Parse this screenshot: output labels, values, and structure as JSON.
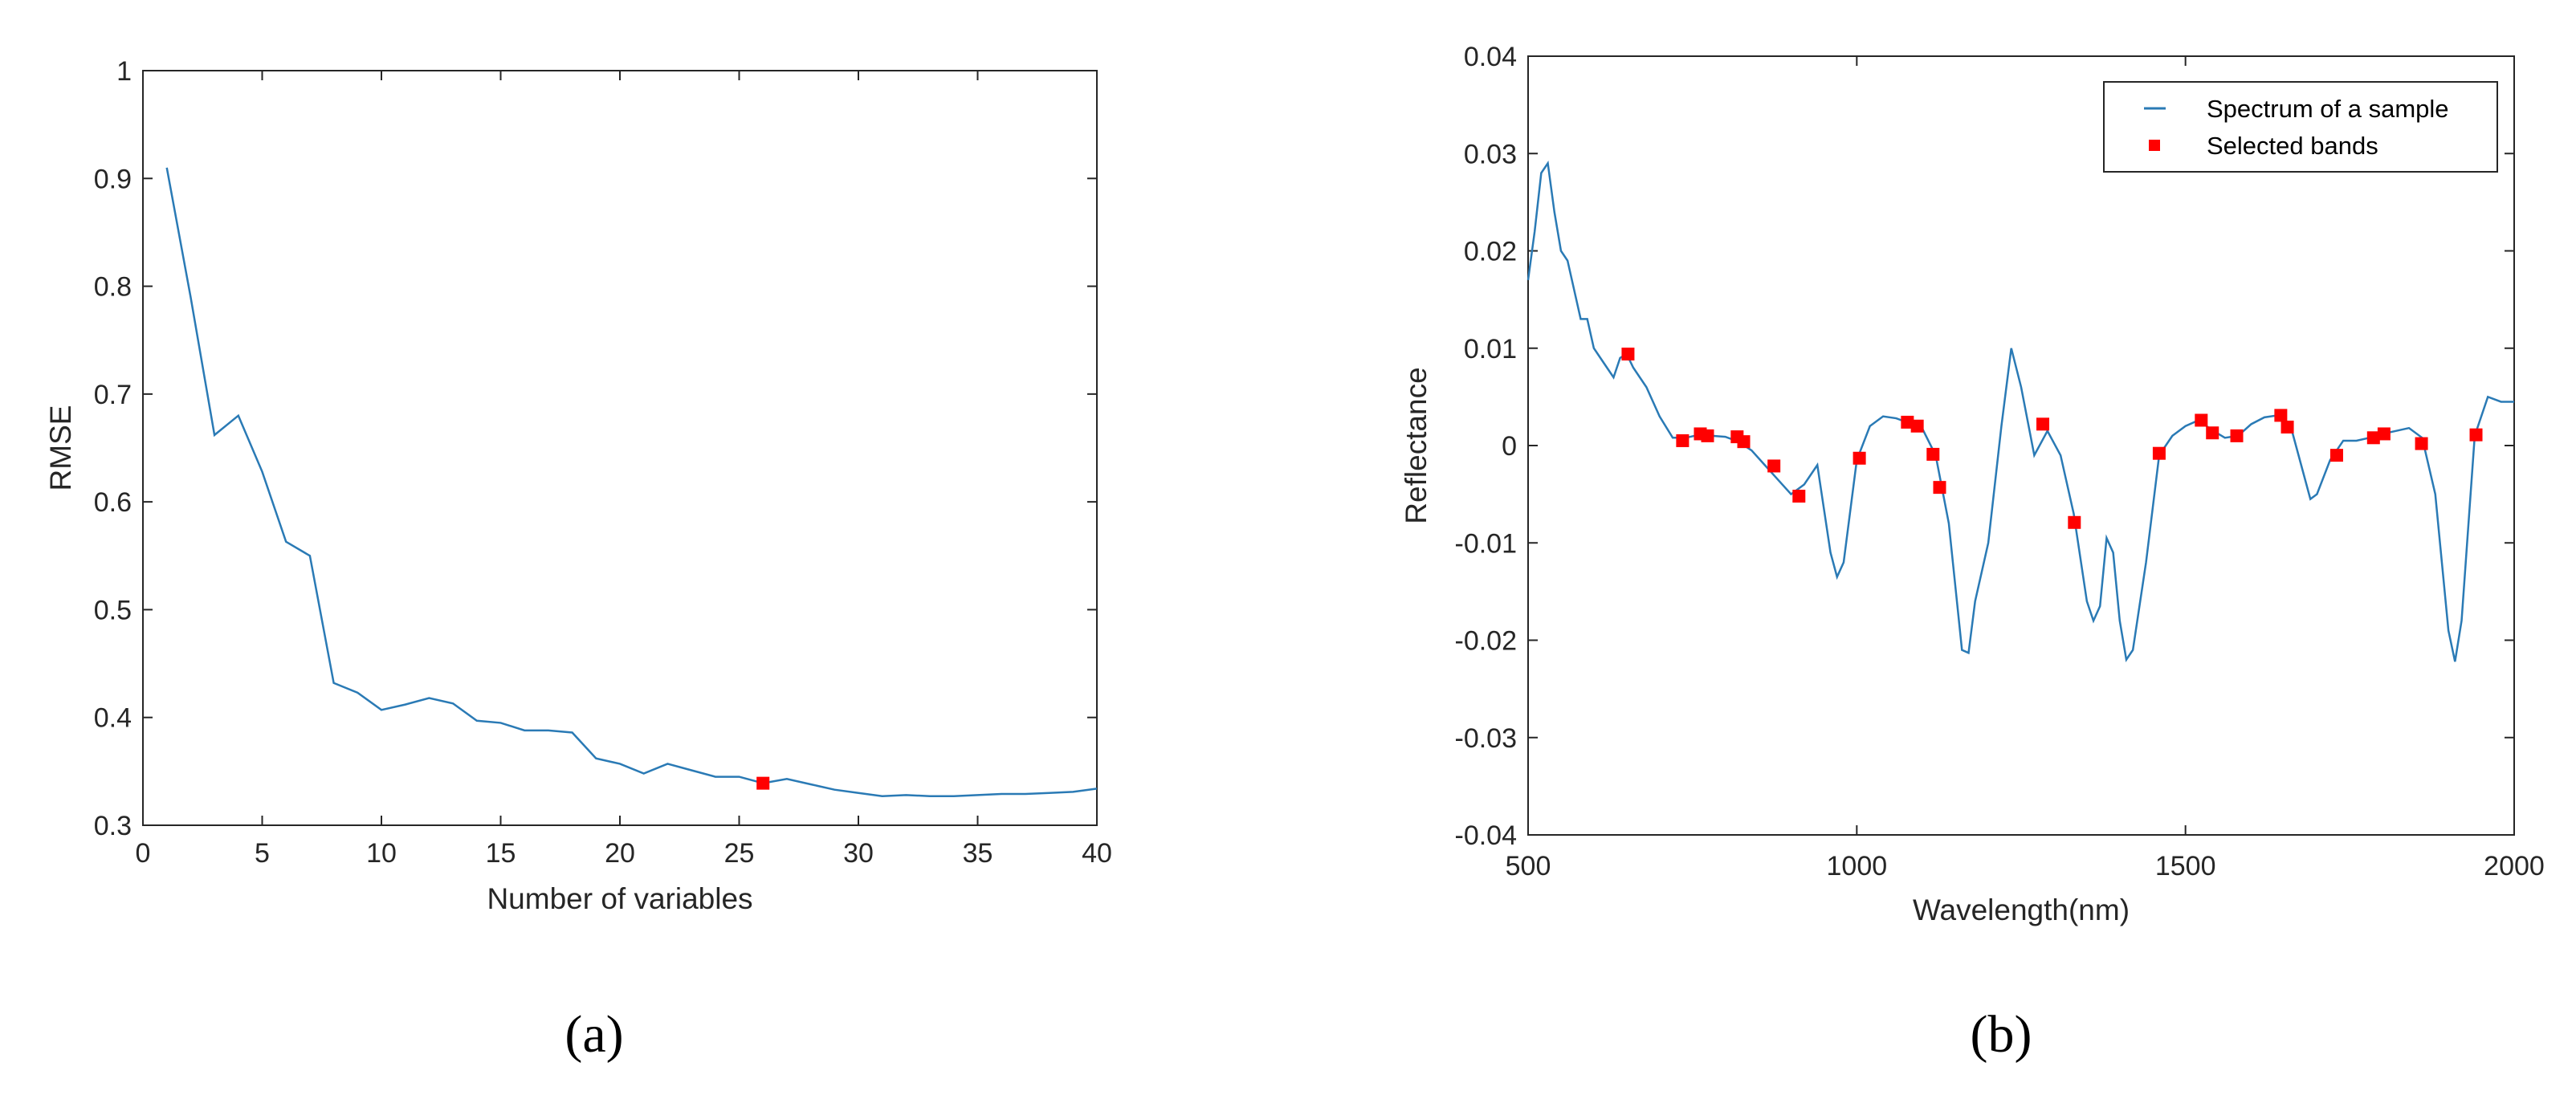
{
  "chart_data": [
    {
      "type": "line",
      "xlabel": "Number of variables",
      "ylabel": "RMSE",
      "xlim": [
        0,
        40
      ],
      "ylim": [
        0.3,
        1
      ],
      "xticks": [
        "0",
        "5",
        "10",
        "15",
        "20",
        "25",
        "30",
        "35",
        "40"
      ],
      "yticks": [
        "0.3",
        "0.4",
        "0.5",
        "0.6",
        "0.7",
        "0.8",
        "0.9",
        "1"
      ],
      "grid": false,
      "line_color": "#2a7ab5",
      "marker_color": "#ff0000",
      "series": [
        {
          "x": [
            1,
            2,
            3,
            4,
            5,
            6,
            7,
            8,
            9,
            10,
            11,
            12,
            13,
            14,
            15,
            16,
            17,
            18,
            19,
            20,
            21,
            22,
            23,
            24,
            25,
            26,
            27,
            28,
            29,
            30,
            31,
            32,
            33,
            34,
            35,
            36,
            37,
            38,
            39,
            40
          ],
          "values": [
            0.91,
            0.79,
            0.662,
            0.68,
            0.628,
            0.563,
            0.55,
            0.432,
            0.423,
            0.407,
            0.412,
            0.418,
            0.413,
            0.397,
            0.395,
            0.388,
            0.388,
            0.386,
            0.362,
            0.357,
            0.348,
            0.357,
            0.351,
            0.345,
            0.345,
            0.339,
            0.343,
            0.338,
            0.333,
            0.33,
            0.327,
            0.328,
            0.327,
            0.327,
            0.328,
            0.329,
            0.329,
            0.33,
            0.331,
            0.334
          ]
        }
      ],
      "highlight_point": {
        "x": 26,
        "y": 0.339
      },
      "caption": "(a)"
    },
    {
      "type": "line",
      "xlabel": "Wavelength(nm)",
      "ylabel": "Reflectance",
      "xlim": [
        500,
        2000
      ],
      "ylim": [
        -0.04,
        0.04
      ],
      "xticks": [
        "500",
        "1000",
        "1500",
        "2000"
      ],
      "yticks": [
        "-0.04",
        "-0.03",
        "-0.02",
        "-0.01",
        "0",
        "0.01",
        "0.02",
        "0.03",
        "0.04"
      ],
      "grid": false,
      "legend_position": "top-right",
      "legend": [
        "Spectrum of a sample",
        "Selected bands"
      ],
      "line_color": "#2a7ab5",
      "marker_color": "#ff0000",
      "series": [
        {
          "name": "Spectrum of a sample",
          "x": [
            500,
            510,
            520,
            530,
            540,
            550,
            560,
            570,
            580,
            590,
            600,
            610,
            620,
            630,
            640,
            650,
            660,
            680,
            700,
            720,
            740,
            760,
            780,
            800,
            820,
            840,
            860,
            880,
            900,
            920,
            940,
            960,
            970,
            980,
            1000,
            1020,
            1040,
            1060,
            1080,
            1100,
            1120,
            1140,
            1160,
            1170,
            1180,
            1200,
            1220,
            1235,
            1250,
            1270,
            1290,
            1310,
            1330,
            1350,
            1360,
            1370,
            1380,
            1390,
            1400,
            1410,
            1420,
            1440,
            1460,
            1480,
            1500,
            1520,
            1540,
            1560,
            1580,
            1600,
            1620,
            1640,
            1660,
            1680,
            1690,
            1700,
            1720,
            1740,
            1760,
            1780,
            1800,
            1820,
            1840,
            1860,
            1880,
            1890,
            1900,
            1910,
            1920,
            1940,
            1960,
            1980,
            2000
          ],
          "values": [
            0.017,
            0.022,
            0.028,
            0.029,
            0.024,
            0.02,
            0.019,
            0.016,
            0.013,
            0.013,
            0.01,
            0.009,
            0.008,
            0.007,
            0.009,
            0.0094,
            0.008,
            0.006,
            0.003,
            0.0008,
            0.0008,
            0.0011,
            0.001,
            0.0009,
            0.0004,
            -0.0005,
            -0.002,
            -0.0035,
            -0.005,
            -0.004,
            -0.002,
            -0.011,
            -0.0135,
            -0.012,
            -0.0015,
            0.002,
            0.003,
            0.0028,
            0.0023,
            0.0017,
            -0.001,
            -0.008,
            -0.021,
            -0.0213,
            -0.016,
            -0.01,
            0.002,
            0.01,
            0.006,
            -0.001,
            0.0015,
            -0.001,
            -0.007,
            -0.016,
            -0.018,
            -0.0165,
            -0.0095,
            -0.011,
            -0.018,
            -0.022,
            -0.021,
            -0.012,
            -0.001,
            0.001,
            0.002,
            0.0026,
            0.0016,
            0.0008,
            0.001,
            0.0022,
            0.0029,
            0.0031,
            0.002,
            -0.003,
            -0.0055,
            -0.005,
            -0.0015,
            0.0005,
            0.0005,
            0.0008,
            0.0012,
            0.0015,
            0.0018,
            0.0008,
            -0.005,
            -0.012,
            -0.019,
            -0.0222,
            -0.018,
            0.001,
            0.005,
            0.0045,
            0.0045
          ]
        }
      ],
      "selected_bands": {
        "name": "Selected bands",
        "x": [
          652,
          735,
          762,
          773,
          818,
          828,
          874,
          912,
          1004,
          1077,
          1092,
          1116,
          1126,
          1283,
          1331,
          1460,
          1524,
          1541,
          1578,
          1645,
          1655,
          1730,
          1786,
          1802,
          1859,
          1942
        ],
        "values": [
          0.0094,
          0.0005,
          0.0012,
          0.001,
          0.0009,
          0.0004,
          -0.0021,
          -0.0052,
          -0.0013,
          0.0024,
          0.002,
          -0.0009,
          -0.0043,
          0.0022,
          -0.0079,
          -0.0008,
          0.0026,
          0.0013,
          0.001,
          0.0031,
          0.0019,
          -0.001,
          0.0008,
          0.0012,
          0.0002,
          0.0011
        ]
      },
      "caption": "(b)"
    }
  ]
}
